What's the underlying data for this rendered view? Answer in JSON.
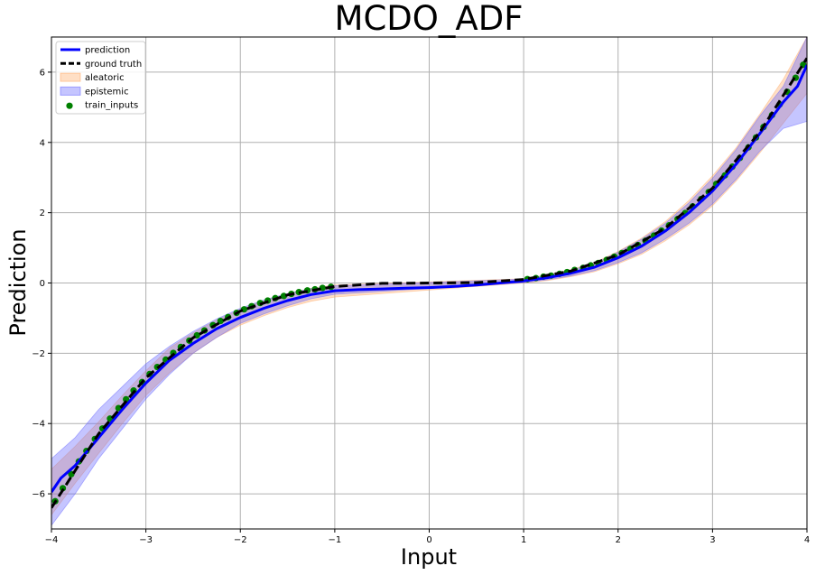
{
  "chart_data": {
    "type": "line",
    "title": "MCDO_ADF",
    "xlabel": "Input",
    "ylabel": "Prediction",
    "xlim": [
      -4,
      4
    ],
    "ylim": [
      -7,
      7
    ],
    "x_ticks": [
      -4,
      -3,
      -2,
      -1,
      0,
      1,
      2,
      3,
      4
    ],
    "y_ticks": [
      -6,
      -4,
      -2,
      0,
      2,
      4,
      6
    ],
    "x_tick_labels": [
      "−4",
      "−3",
      "−2",
      "−1",
      "0",
      "1",
      "2",
      "3",
      "4"
    ],
    "y_tick_labels": [
      "−6",
      "−4",
      "−2",
      "0",
      "2",
      "4",
      "6"
    ],
    "grid": true,
    "legend_position": "upper-left",
    "colors": {
      "prediction": "#0000ff",
      "ground_truth": "#000000",
      "aleatoric": "#ffa35a",
      "epistemic": "#5a5aff",
      "train_inputs": "#008000",
      "grid": "#b0b0b0"
    },
    "legend": [
      {
        "key": "prediction",
        "label": "prediction",
        "kind": "line"
      },
      {
        "key": "ground_truth",
        "label": "ground truth",
        "kind": "dashed"
      },
      {
        "key": "aleatoric",
        "label": "aleatoric",
        "kind": "patch"
      },
      {
        "key": "epistemic",
        "label": "epistemic",
        "kind": "patch"
      },
      {
        "key": "train_inputs",
        "label": "train_inputs",
        "kind": "marker"
      }
    ],
    "series": [
      {
        "name": "ground truth",
        "style": "dashed",
        "function": "x^3 / 10",
        "x": [
          -4,
          -3.5,
          -3,
          -2.5,
          -2,
          -1.5,
          -1,
          -0.5,
          0,
          0.5,
          1,
          1.5,
          2,
          2.5,
          3,
          3.5,
          4
        ],
        "values": [
          -6.4,
          -4.29,
          -2.7,
          -1.56,
          -0.8,
          -0.34,
          -0.1,
          -0.01,
          0,
          0.01,
          0.1,
          0.34,
          0.8,
          1.56,
          2.7,
          4.29,
          6.4
        ]
      },
      {
        "name": "prediction",
        "style": "solid",
        "x": [
          -4,
          -3.9,
          -3.75,
          -3.5,
          -3.25,
          -3,
          -2.75,
          -2.5,
          -2.25,
          -2,
          -1.75,
          -1.5,
          -1.25,
          -1,
          -0.75,
          -0.5,
          -0.25,
          0,
          0.25,
          0.5,
          0.75,
          1,
          1.25,
          1.5,
          1.75,
          2,
          2.25,
          2.5,
          2.75,
          3,
          3.25,
          3.5,
          3.75,
          3.9,
          4
        ],
        "values": [
          -5.95,
          -5.55,
          -5.2,
          -4.4,
          -3.6,
          -2.85,
          -2.2,
          -1.72,
          -1.3,
          -0.98,
          -0.72,
          -0.5,
          -0.33,
          -0.22,
          -0.19,
          -0.17,
          -0.15,
          -0.13,
          -0.1,
          -0.06,
          0.0,
          0.06,
          0.15,
          0.28,
          0.45,
          0.72,
          1.05,
          1.48,
          2.0,
          2.62,
          3.38,
          4.25,
          5.15,
          5.6,
          6.2
        ]
      }
    ],
    "aleatoric_band": {
      "x": [
        -4,
        -3.75,
        -3.5,
        -3.25,
        -3,
        -2.75,
        -2.5,
        -2.25,
        -2,
        -1.75,
        -1.5,
        -1.25,
        -1,
        1,
        1.25,
        1.5,
        1.75,
        2,
        2.25,
        2.5,
        2.75,
        3,
        3.25,
        3.5,
        3.75,
        4
      ],
      "lower": [
        -6.6,
        -5.7,
        -4.85,
        -4.0,
        -3.2,
        -2.55,
        -2.0,
        -1.55,
        -1.2,
        -0.93,
        -0.7,
        -0.52,
        -0.4,
        0.0,
        0.07,
        0.18,
        0.32,
        0.55,
        0.82,
        1.2,
        1.65,
        2.2,
        2.9,
        3.7,
        4.55,
        5.4
      ],
      "upper": [
        -5.3,
        -4.65,
        -3.95,
        -3.2,
        -2.5,
        -1.85,
        -1.42,
        -1.05,
        -0.75,
        -0.5,
        -0.3,
        -0.15,
        -0.06,
        0.12,
        0.23,
        0.38,
        0.58,
        0.9,
        1.28,
        1.75,
        2.35,
        3.05,
        3.85,
        4.8,
        5.8,
        7.0
      ]
    },
    "epistemic_band": {
      "x": [
        -4,
        -3.75,
        -3.5,
        -3.25,
        -3,
        -2.75,
        -2.5,
        -2.25,
        -2,
        -1.75,
        -1.5,
        -1.25,
        -1,
        1,
        1.25,
        1.5,
        1.75,
        2,
        2.25,
        2.5,
        2.75,
        3,
        3.25,
        3.5,
        3.75,
        4
      ],
      "lower": [
        -6.9,
        -6.0,
        -5.0,
        -4.15,
        -3.3,
        -2.6,
        -2.0,
        -1.55,
        -1.15,
        -0.88,
        -0.65,
        -0.45,
        -0.32,
        0.01,
        0.09,
        0.2,
        0.35,
        0.58,
        0.86,
        1.25,
        1.7,
        2.25,
        2.95,
        3.75,
        4.4,
        4.6
      ],
      "upper": [
        -5.0,
        -4.4,
        -3.6,
        -2.95,
        -2.3,
        -1.8,
        -1.38,
        -1.02,
        -0.72,
        -0.48,
        -0.3,
        -0.16,
        -0.08,
        0.11,
        0.22,
        0.36,
        0.56,
        0.88,
        1.25,
        1.7,
        2.28,
        2.98,
        3.8,
        4.75,
        5.6,
        7.0
      ]
    },
    "train_inputs": {
      "x": [
        -3.96,
        -3.88,
        -3.79,
        -3.71,
        -3.63,
        -3.54,
        -3.46,
        -3.38,
        -3.29,
        -3.21,
        -3.13,
        -3.04,
        -2.96,
        -2.88,
        -2.79,
        -2.71,
        -2.63,
        -2.54,
        -2.46,
        -2.38,
        -2.29,
        -2.21,
        -2.13,
        -2.04,
        -1.96,
        -1.88,
        -1.79,
        -1.71,
        -1.63,
        -1.54,
        -1.46,
        -1.38,
        -1.29,
        -1.21,
        -1.13,
        -1.04,
        1.04,
        1.13,
        1.21,
        1.29,
        1.38,
        1.46,
        1.54,
        1.63,
        1.71,
        1.79,
        1.88,
        1.96,
        2.04,
        2.13,
        2.21,
        2.29,
        2.38,
        2.46,
        2.54,
        2.63,
        2.71,
        2.79,
        2.88,
        2.96,
        3.04,
        3.13,
        3.21,
        3.29,
        3.38,
        3.46,
        3.54,
        3.63,
        3.71,
        3.79,
        3.88,
        3.96
      ],
      "y": [
        -6.21,
        -5.84,
        -5.44,
        -5.08,
        -4.78,
        -4.44,
        -4.14,
        -3.86,
        -3.56,
        -3.31,
        -3.06,
        -2.82,
        -2.59,
        -2.39,
        -2.18,
        -1.99,
        -1.82,
        -1.64,
        -1.49,
        -1.35,
        -1.2,
        -1.08,
        -0.97,
        -0.85,
        -0.75,
        -0.66,
        -0.57,
        -0.5,
        -0.43,
        -0.37,
        -0.31,
        -0.26,
        -0.21,
        -0.18,
        -0.14,
        -0.11,
        0.11,
        0.14,
        0.18,
        0.21,
        0.26,
        0.31,
        0.37,
        0.43,
        0.5,
        0.57,
        0.66,
        0.75,
        0.85,
        0.97,
        1.08,
        1.2,
        1.35,
        1.49,
        1.64,
        1.82,
        1.99,
        2.18,
        2.39,
        2.59,
        2.82,
        3.06,
        3.31,
        3.56,
        3.86,
        4.14,
        4.44,
        4.78,
        5.08,
        5.44,
        5.84,
        6.21
      ]
    }
  }
}
